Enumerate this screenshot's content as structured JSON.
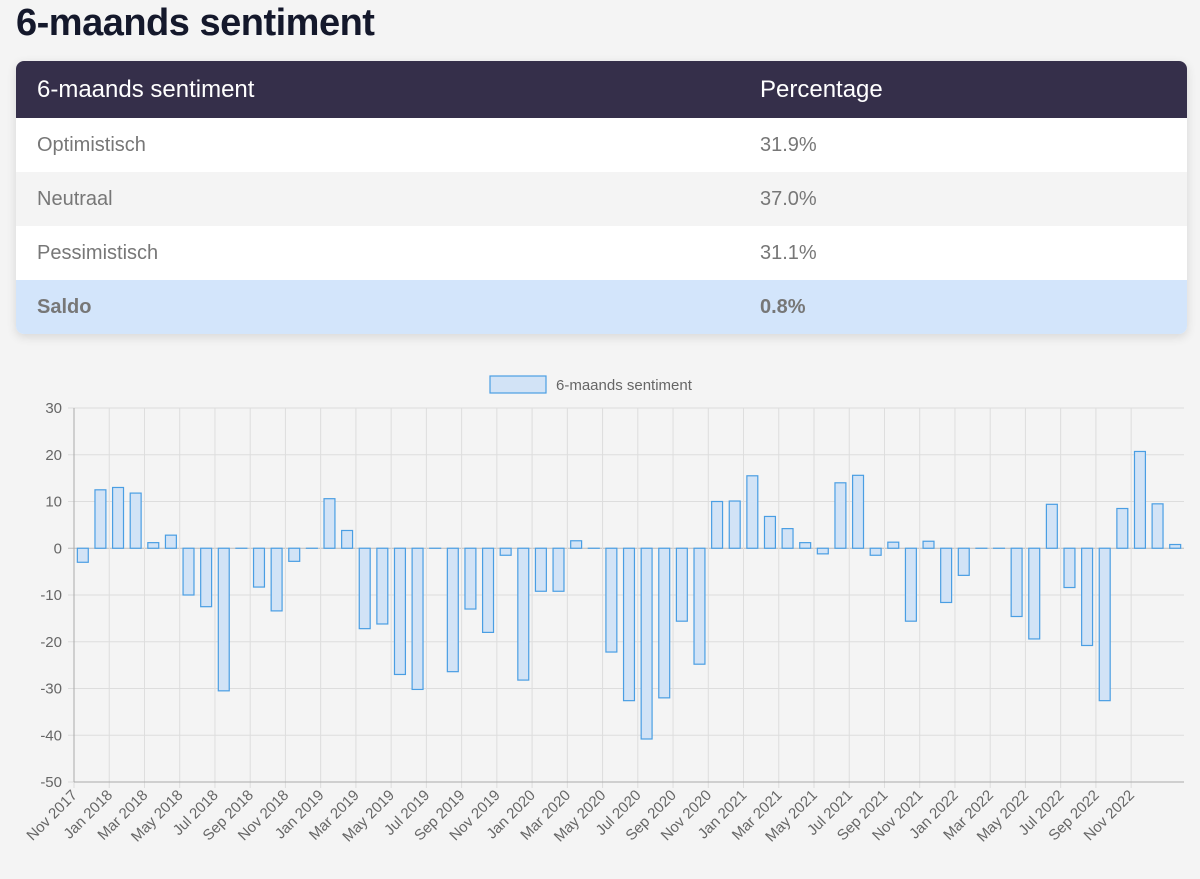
{
  "page": {
    "title": "6-maands sentiment"
  },
  "table": {
    "headers": [
      "6-maands sentiment",
      "Percentage"
    ],
    "rows": [
      {
        "label": "Optimistisch",
        "value": "31.9%"
      },
      {
        "label": "Neutraal",
        "value": "37.0%"
      },
      {
        "label": "Pessimistisch",
        "value": "31.1%"
      },
      {
        "label": "Saldo",
        "value": "0.8%"
      }
    ]
  },
  "chart_data": {
    "type": "bar",
    "legend": "6-maands sentiment",
    "legend_position": "top-center",
    "grid": true,
    "ylim": [
      -50,
      30
    ],
    "yticks": [
      30,
      20,
      10,
      0,
      -10,
      -20,
      -30,
      -40,
      -50
    ],
    "colors": {
      "bar_fill": "#d2e3f6",
      "bar_stroke": "#4a9ee3",
      "grid": "#dddddd",
      "axis": "#aaaaaa"
    },
    "x_tick_labels": [
      "Nov 2017",
      "Jan 2018",
      "Mar 2018",
      "May 2018",
      "Jul 2018",
      "Sep 2018",
      "Nov 2018",
      "Jan 2019",
      "Mar 2019",
      "May 2019",
      "Jul 2019",
      "Sep 2019",
      "Nov 2019",
      "Jan 2020",
      "Mar 2020",
      "May 2020",
      "Jul 2020",
      "Sep 2020",
      "Nov 2020",
      "Jan 2021",
      "Mar 2021",
      "May 2021",
      "Jul 2021",
      "Sep 2021",
      "Nov 2021",
      "Jan 2022",
      "Mar 2022",
      "May 2022",
      "Jul 2022",
      "Sep 2022",
      "Nov 2022"
    ],
    "values": [
      -3,
      12.5,
      13,
      11.8,
      1.2,
      2.8,
      -10,
      -12.5,
      -30.5,
      0,
      -8.3,
      -13.4,
      -2.8,
      0,
      10.6,
      3.8,
      -17.2,
      -16.2,
      -27,
      -30.2,
      0,
      -26.4,
      -13,
      -18,
      -1.5,
      -28.2,
      -9.2,
      -9.2,
      1.6,
      0,
      -22.2,
      -32.6,
      -40.8,
      -32,
      -15.6,
      -24.8,
      10,
      10.1,
      15.5,
      6.8,
      4.2,
      1.2,
      -1.2,
      14,
      15.6,
      -1.5,
      1.3,
      -15.6,
      1.5,
      -11.6,
      -5.8,
      0,
      0,
      -14.6,
      -19.4,
      9.4,
      -8.4,
      -20.8,
      -32.6,
      8.5,
      20.7,
      9.5,
      0.8
    ]
  }
}
